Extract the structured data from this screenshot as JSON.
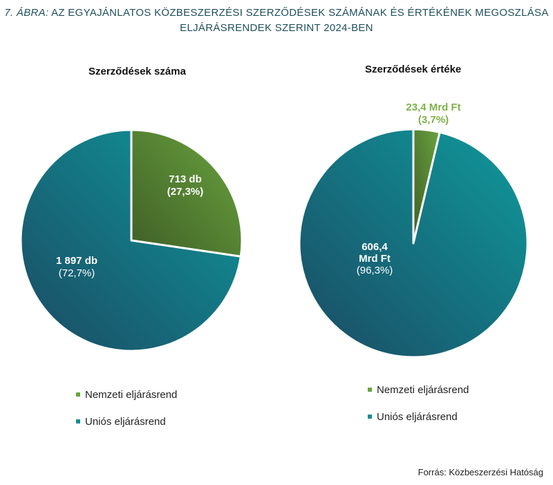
{
  "figure": {
    "title_number": "7. ÁBRA:",
    "title_line1": "AZ EGYAJÁNLATOS KÖZBESZERZÉSI SZERZŐDÉSEK SZÁMÁNAK ÉS ÉRTÉKÉNEK MEGOSZLÁSA",
    "title_line2": "ELJÁRÁSRENDEK SZERINT 2024-BEN",
    "source": "Forrás: Közbeszerzési Hatóság"
  },
  "colors": {
    "nemzeti": "#6aa43f",
    "nemzeti_dark": "#3f5e26",
    "unios": "#0f8e92",
    "unios_dark": "#1b4a63",
    "title": "#1e4f5c",
    "highlight_label": "#7fb148"
  },
  "chart_data": [
    {
      "type": "pie",
      "title": "Szerződések száma",
      "labels": [
        "Nemzeti eljárásrend",
        "Uniós eljárásrend"
      ],
      "values": [
        713,
        1897
      ],
      "percent": [
        27.3,
        72.7
      ],
      "value_labels": [
        "713 db",
        "1 897 db"
      ],
      "percent_labels": [
        "(27,3%)",
        "(72,7%)"
      ],
      "legend": [
        "Nemzeti eljárásrend",
        "Uniós eljárásrend"
      ],
      "legend_position": "bottom"
    },
    {
      "type": "pie",
      "title": "Szerződések értéke",
      "labels": [
        "Nemzeti eljárásrend",
        "Uniós eljárásrend"
      ],
      "values": [
        23.4,
        606.4
      ],
      "percent": [
        3.7,
        96.3
      ],
      "value_labels": [
        "23,4 Mrd Ft",
        "606,4 Mrd Ft"
      ],
      "value_label_lines": [
        [
          "23,4 Mrd Ft"
        ],
        [
          "606,4",
          "Mrd Ft"
        ]
      ],
      "percent_labels": [
        "(3,7%)",
        "(96,3%)"
      ],
      "legend": [
        "Nemzeti eljárásrend",
        "Uniós eljárásrend"
      ],
      "legend_position": "bottom"
    }
  ]
}
